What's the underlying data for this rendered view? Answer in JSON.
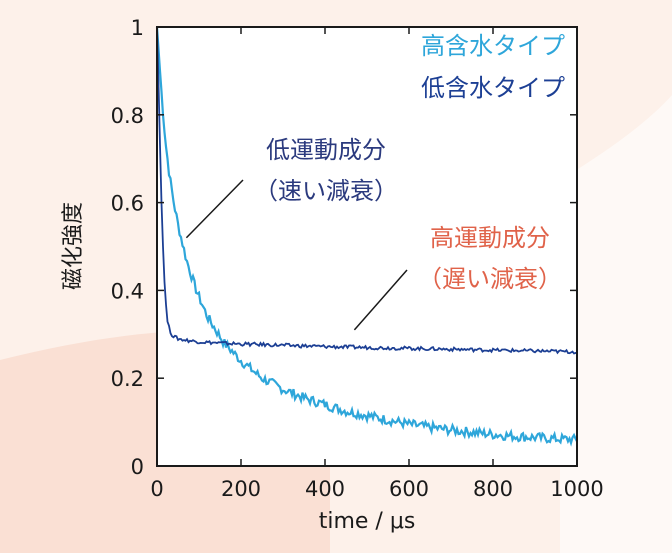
{
  "chart_data": {
    "type": "line",
    "xlabel": "time / μs",
    "ylabel": "磁化強度",
    "xlim": [
      0,
      1000
    ],
    "ylim": [
      0,
      1
    ],
    "xticks": [
      "0",
      "200",
      "400",
      "600",
      "800",
      "1000"
    ],
    "yticks": [
      "0",
      "0.2",
      "0.4",
      "0.6",
      "0.8",
      "1"
    ],
    "grid": false,
    "legend_position": "top-right",
    "series": [
      {
        "name": "高含水タイプ",
        "color": "#2ea6da",
        "x": [
          0,
          5,
          10,
          15,
          20,
          30,
          40,
          50,
          60,
          70,
          80,
          90,
          100,
          120,
          140,
          160,
          180,
          200,
          250,
          300,
          350,
          400,
          450,
          500,
          550,
          600,
          650,
          700,
          750,
          800,
          850,
          900,
          950,
          1000
        ],
        "y": [
          1.0,
          0.93,
          0.86,
          0.8,
          0.74,
          0.66,
          0.6,
          0.55,
          0.51,
          0.47,
          0.44,
          0.41,
          0.385,
          0.34,
          0.31,
          0.28,
          0.26,
          0.24,
          0.2,
          0.175,
          0.155,
          0.14,
          0.125,
          0.115,
          0.105,
          0.095,
          0.088,
          0.082,
          0.077,
          0.072,
          0.068,
          0.065,
          0.062,
          0.06
        ]
      },
      {
        "name": "低含水タイプ",
        "color": "#1c3f94",
        "x": [
          0,
          5,
          10,
          15,
          20,
          25,
          30,
          35,
          40,
          50,
          60,
          80,
          100,
          150,
          200,
          300,
          400,
          500,
          600,
          700,
          800,
          900,
          1000
        ],
        "y": [
          1.0,
          0.82,
          0.62,
          0.48,
          0.38,
          0.33,
          0.31,
          0.3,
          0.295,
          0.29,
          0.288,
          0.285,
          0.283,
          0.28,
          0.278,
          0.275,
          0.272,
          0.27,
          0.268,
          0.266,
          0.264,
          0.262,
          0.26
        ]
      }
    ],
    "annotations": [
      {
        "line1": "低運動成分",
        "line2": "（速い減衰）",
        "color": "#2b3a7e",
        "target_x": 70,
        "target_y": 0.52
      },
      {
        "line1": "高運動成分",
        "line2": "（遅い減衰）",
        "color": "#e0634a",
        "target_x": 470,
        "target_y": 0.31
      }
    ]
  }
}
